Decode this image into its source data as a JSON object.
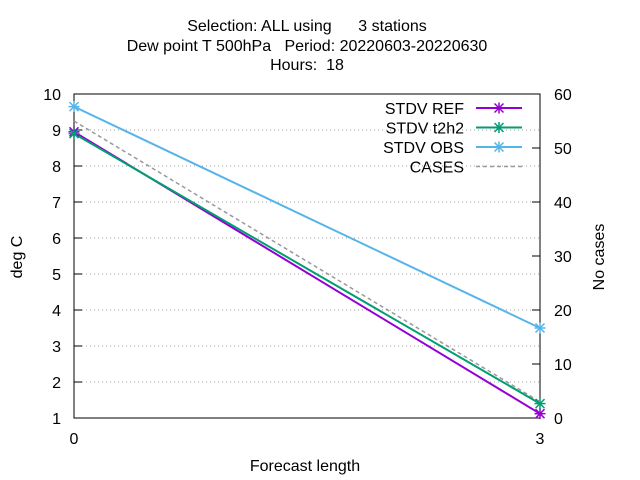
{
  "chart_data": {
    "type": "line",
    "title_lines": [
      "Selection: ALL using      3 stations",
      "Dew point T 500hPa   Period: 20220603-20220630",
      "Hours:  18"
    ],
    "xlabel": "Forecast length",
    "ylabel": "deg C",
    "y2label": "No cases",
    "x": [
      0,
      3
    ],
    "xlim": [
      0,
      3
    ],
    "xticks": [
      0,
      3
    ],
    "ylim": [
      1,
      10
    ],
    "yticks": [
      1,
      2,
      3,
      4,
      5,
      6,
      7,
      8,
      9,
      10
    ],
    "y2lim": [
      0,
      60
    ],
    "y2ticks": [
      0,
      10,
      20,
      30,
      40,
      50,
      60
    ],
    "grid": "horizontal-dotted",
    "legend_position": "top-right",
    "series": [
      {
        "name": "STDV REF",
        "values": [
          8.95,
          1.12
        ],
        "color": "#9400d3",
        "axis": "y1",
        "marker": "x-star"
      },
      {
        "name": "STDV t2h2",
        "values": [
          8.9,
          1.4
        ],
        "color": "#009e73",
        "axis": "y1",
        "marker": "x-star"
      },
      {
        "name": "STDV OBS",
        "values": [
          9.65,
          3.5
        ],
        "color": "#56b4e9",
        "axis": "y1",
        "marker": "x-star"
      },
      {
        "name": "CASES",
        "values": [
          55,
          3
        ],
        "color": "#999999",
        "axis": "y2",
        "marker": "none",
        "dash": "dashed"
      }
    ]
  }
}
